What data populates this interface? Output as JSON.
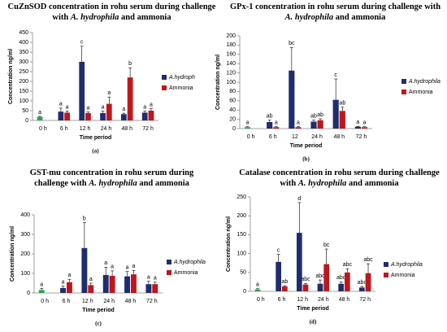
{
  "chart_data": [
    {
      "type": "bar",
      "title": [
        {
          "text": "CuZnSOD concentration in rohu serum during challenge with ",
          "italic": false
        },
        {
          "text": "A. hydrophila",
          "italic": true
        },
        {
          "text": " and ammonia",
          "italic": false
        }
      ],
      "ylabel": "Concentration ng/ml",
      "xlabel": "Time period",
      "panel_label": "(a)",
      "categories": [
        "0 h",
        "6 h",
        "12 h",
        "24 h",
        "48 h",
        "72 h"
      ],
      "ylim": [
        0,
        450
      ],
      "yticks": [
        0,
        50,
        100,
        150,
        200,
        250,
        300,
        350,
        400,
        450
      ],
      "series": [
        {
          "name": "A.hydroph",
          "color": "#1f2d6e",
          "colors": [
            "#22a84a",
            "#1f2d6e",
            "#1f2d6e",
            "#1f2d6e",
            "#1f2d6e",
            "#1f2d6e"
          ],
          "values": [
            18,
            45,
            300,
            38,
            32,
            40
          ],
          "errors": [
            3,
            18,
            80,
            10,
            5,
            8
          ],
          "letters": [
            "a",
            "a",
            "c",
            "a",
            "a",
            "a"
          ]
        },
        {
          "name": "Ammonia",
          "color": "#c0161c",
          "values": [
            null,
            40,
            38,
            85,
            220,
            50
          ],
          "errors": [
            null,
            8,
            5,
            35,
            50,
            10
          ],
          "letters": [
            null,
            "a",
            "a",
            "a",
            "b",
            "a"
          ]
        }
      ]
    },
    {
      "type": "bar",
      "title": [
        {
          "text": "GPx-1 concentration in rohu serum during challenge with ",
          "italic": false
        },
        {
          "text": "A. hydrophila",
          "italic": true
        },
        {
          "text": " and ammonia",
          "italic": false
        }
      ],
      "ylabel": "Concentration ng/ml",
      "xlabel": "Time period",
      "panel_label": "(b)",
      "categories": [
        "0 h",
        "6 h",
        "12",
        "24 h",
        "48 h",
        "72 h"
      ],
      "ylim": [
        0,
        200
      ],
      "yticks": [
        0,
        20,
        40,
        60,
        80,
        100,
        120,
        140,
        160,
        180,
        200
      ],
      "series": [
        {
          "name": "A.hydrophila",
          "color": "#1f2d6e",
          "colors": [
            "#22a84a",
            "#1f2d6e",
            "#1f2d6e",
            "#1f2d6e",
            "#1f2d6e",
            "#1f2d6e"
          ],
          "values": [
            3,
            14,
            125,
            15,
            62,
            4
          ],
          "errors": [
            1,
            4,
            50,
            3,
            45,
            1
          ],
          "letters": [
            "a",
            "ab",
            "bc",
            "ab",
            "c",
            "a"
          ]
        },
        {
          "name": "Ammonia",
          "color": "#c0161c",
          "values": [
            null,
            3,
            3,
            18,
            38,
            3
          ],
          "errors": [
            null,
            1,
            1,
            3,
            8,
            1
          ],
          "letters": [
            null,
            "a",
            "a",
            "ab",
            "ab",
            "a"
          ]
        }
      ]
    },
    {
      "type": "bar",
      "title": [
        {
          "text": "GST-mu concentration in rohu serum during challenge with ",
          "italic": false
        },
        {
          "text": "A. hydrophila",
          "italic": true
        },
        {
          "text": " and ammonia",
          "italic": false
        }
      ],
      "ylabel": "Concentration ng/ml",
      "xlabel": "Time period",
      "panel_label": "(c)",
      "categories": [
        "0 h",
        "6 h",
        "12 h",
        "24 h",
        "48 h",
        "72 h"
      ],
      "ylim": [
        0,
        400
      ],
      "yticks": [
        0,
        100,
        200,
        300,
        400
      ],
      "series": [
        {
          "name": "A.hydrophila",
          "color": "#1f2d6e",
          "colors": [
            "#22a84a",
            "#1f2d6e",
            "#1f2d6e",
            "#1f2d6e",
            "#1f2d6e",
            "#1f2d6e"
          ],
          "values": [
            15,
            25,
            230,
            92,
            85,
            45
          ],
          "errors": [
            8,
            10,
            130,
            40,
            25,
            15
          ],
          "letters": [
            "a",
            "a",
            "b",
            "a",
            "a",
            "a"
          ]
        },
        {
          "name": "Ammonia",
          "color": "#c0161c",
          "values": [
            null,
            55,
            40,
            88,
            95,
            45
          ],
          "errors": [
            null,
            15,
            10,
            25,
            20,
            10
          ],
          "letters": [
            null,
            "a",
            "a",
            "a",
            "a",
            "a"
          ]
        }
      ]
    },
    {
      "type": "bar",
      "title": [
        {
          "text": "Catalase concentration in rohu serum during challenge with ",
          "italic": false
        },
        {
          "text": "A. hydrophila",
          "italic": true
        },
        {
          "text": " and ammonia",
          "italic": false
        }
      ],
      "ylabel": "Concentration ng/ml",
      "xlabel": "Time period",
      "panel_label": "(d)",
      "categories": [
        "0 h",
        "6 h",
        "12 h",
        "24 h",
        "48 h",
        "72 h"
      ],
      "ylim": [
        0,
        250
      ],
      "yticks": [
        0,
        50,
        100,
        150,
        200,
        250
      ],
      "series": [
        {
          "name": "A.hydrophila",
          "color": "#1f2d6e",
          "colors": [
            "#22a84a",
            "#1f2d6e",
            "#1f2d6e",
            "#1f2d6e",
            "#1f2d6e",
            "#1f2d6e"
          ],
          "values": [
            5,
            78,
            155,
            20,
            20,
            10
          ],
          "errors": [
            2,
            20,
            80,
            10,
            5,
            3
          ],
          "letters": [
            "a",
            "c",
            "d",
            "abc",
            "abc",
            "abc"
          ]
        },
        {
          "name": "Ammonia",
          "color": "#c0161c",
          "values": [
            null,
            13,
            18,
            72,
            50,
            48
          ],
          "errors": [
            null,
            2,
            3,
            40,
            10,
            25
          ],
          "letters": [
            null,
            "ab",
            "abc",
            "bc",
            "abc",
            "abc"
          ]
        }
      ]
    }
  ]
}
